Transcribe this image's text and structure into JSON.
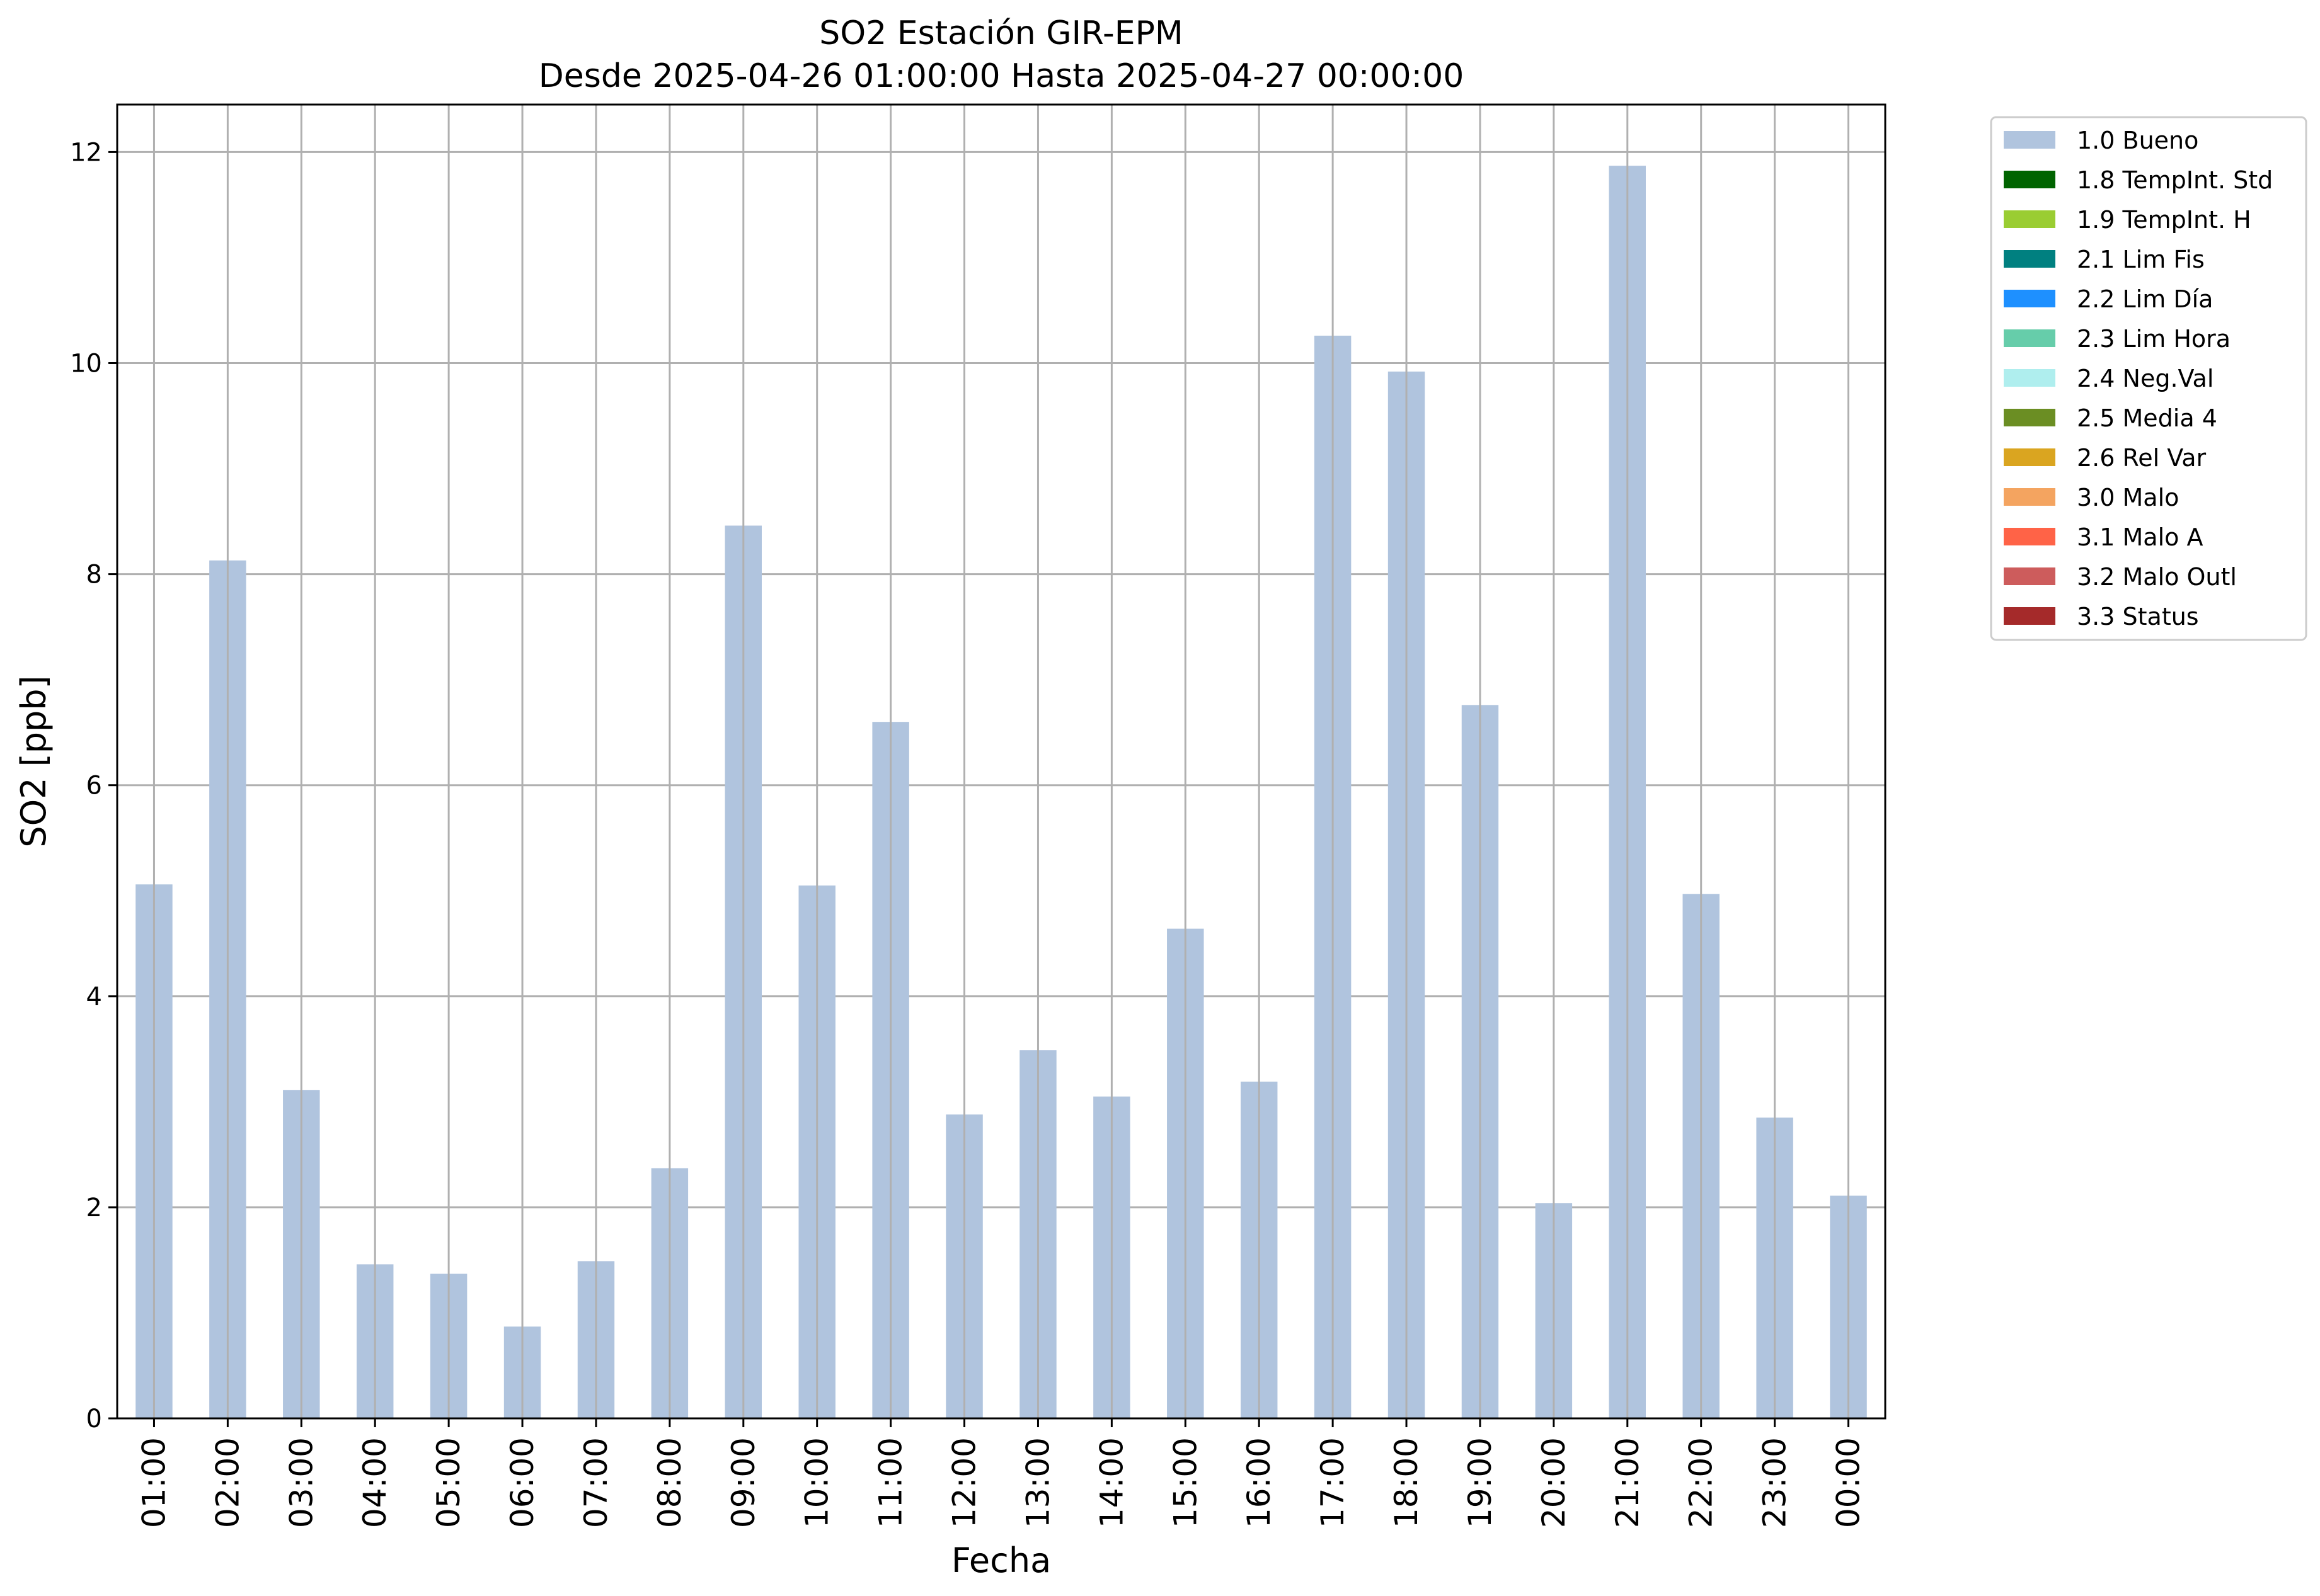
{
  "chart_data": {
    "type": "bar",
    "title": "SO2 Estación GIR-EPM",
    "subtitle": "Desde 2025-04-26 01:00:00 Hasta 2025-04-27 00:00:00",
    "xlabel": "Fecha",
    "ylabel": "SO2 [ppb]",
    "ylim": [
      0,
      12.45
    ],
    "yticks": [
      "0",
      "2",
      "4",
      "6",
      "8",
      "10",
      "12"
    ],
    "grid": true,
    "legend_position": "outside-top-right",
    "categories": [
      "01:00",
      "02:00",
      "03:00",
      "04:00",
      "05:00",
      "06:00",
      "07:00",
      "08:00",
      "09:00",
      "10:00",
      "11:00",
      "12:00",
      "13:00",
      "14:00",
      "15:00",
      "16:00",
      "17:00",
      "18:00",
      "19:00",
      "20:00",
      "21:00",
      "22:00",
      "23:00",
      "00:00"
    ],
    "series": [
      {
        "name": "1.0 Bueno",
        "color": "#b0c4de",
        "values": [
          5.06,
          8.13,
          3.11,
          1.46,
          1.37,
          0.87,
          1.49,
          2.37,
          8.46,
          5.05,
          6.6,
          2.88,
          3.49,
          3.05,
          4.64,
          3.19,
          10.26,
          9.92,
          6.76,
          2.04,
          11.87,
          4.97,
          2.85,
          2.11
        ]
      }
    ],
    "legend": [
      {
        "label": "1.0 Bueno",
        "color": "#b0c4de"
      },
      {
        "label": "1.8 TempInt. Std",
        "color": "#006400"
      },
      {
        "label": "1.9 TempInt. H",
        "color": "#9acd32"
      },
      {
        "label": "2.1 Lim Fis",
        "color": "#008080"
      },
      {
        "label": "2.2 Lim Día",
        "color": "#1e90ff"
      },
      {
        "label": "2.3 Lim Hora",
        "color": "#66cdaa"
      },
      {
        "label": "2.4 Neg.Val",
        "color": "#afeeee"
      },
      {
        "label": "2.5 Media 4",
        "color": "#6b8e23"
      },
      {
        "label": "2.6 Rel Var",
        "color": "#daa520"
      },
      {
        "label": "3.0 Malo",
        "color": "#f4a460"
      },
      {
        "label": "3.1 Malo A",
        "color": "#ff6347"
      },
      {
        "label": "3.2 Malo Outl",
        "color": "#cd5c5c"
      },
      {
        "label": "3.3 Status",
        "color": "#a52a2a"
      }
    ]
  }
}
